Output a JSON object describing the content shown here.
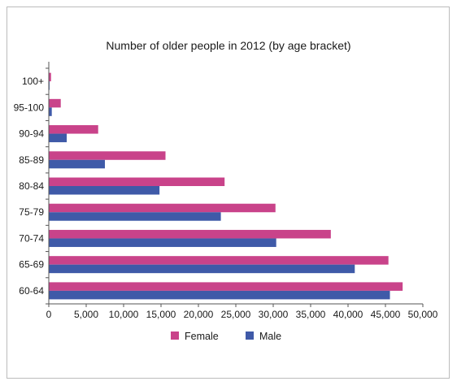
{
  "chart_data": {
    "type": "bar",
    "orientation": "horizontal",
    "title": "Number of older people in 2012 (by age bracket)",
    "xlabel": "",
    "ylabel": "",
    "categories": [
      "100+",
      "95-100",
      "90-94",
      "85-89",
      "80-84",
      "75-79",
      "70-74",
      "65-69",
      "60-64"
    ],
    "series": [
      {
        "name": "Female",
        "color": "#c9438a",
        "values": [
          300,
          1600,
          6600,
          15600,
          23500,
          30300,
          37700,
          45400,
          47300
        ]
      },
      {
        "name": "Male",
        "color": "#3f5aa8",
        "values": [
          100,
          400,
          2400,
          7500,
          14800,
          23000,
          30400,
          40900,
          45600
        ]
      }
    ],
    "xlim": [
      0,
      50000
    ],
    "xticks": [
      "0",
      "5,000",
      "10,000",
      "15,000",
      "20,000",
      "25,000",
      "30,000",
      "35,000",
      "40,000",
      "45,000",
      "50,000"
    ],
    "grid": false,
    "legend_position": "bottom"
  }
}
